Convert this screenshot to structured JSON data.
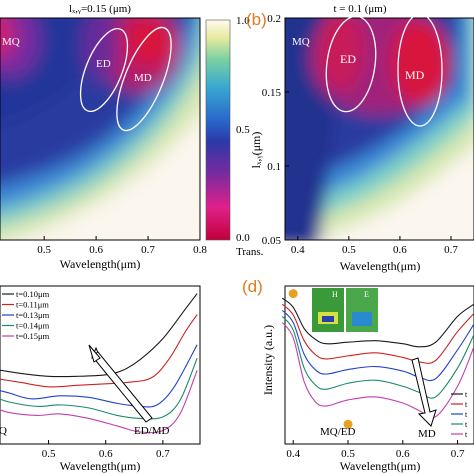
{
  "chart_data": [
    {
      "panel": "a",
      "type": "heatmap",
      "title": "lₓ,ᵧ=0.15 (μm)",
      "xlabel": "Wavelength(μm)",
      "xticks": [
        "0.5",
        "0.6",
        "0.7",
        "0.8"
      ],
      "xlim": [
        0.4,
        0.8
      ],
      "annotations": [
        "MQ",
        "ED",
        "MD"
      ],
      "colorbar": {
        "ticks": [
          "1.0",
          "0.5",
          "0.0"
        ],
        "label": "Trans.",
        "range": [
          0.0,
          1.0
        ]
      }
    },
    {
      "panel": "b",
      "type": "heatmap",
      "label": "(b)",
      "title": "t = 0.1 (μm)",
      "xlabel": "Wavelength(μm)",
      "ylabel": "lₓ,ᵧ(μm)",
      "xticks": [
        "0.4",
        "0.5",
        "0.6",
        "0.7"
      ],
      "yticks": [
        "0.2",
        "0.15",
        "0.1",
        "0.05"
      ],
      "xlim": [
        0.38,
        0.75
      ],
      "ylim": [
        0.05,
        0.2
      ],
      "annotations": [
        "MQ",
        "ED",
        "MD"
      ]
    },
    {
      "panel": "c",
      "type": "line",
      "xlabel": "Wavelength(μm)",
      "xticks": [
        "0.5",
        "0.6",
        "0.7"
      ],
      "xlim": [
        0.4,
        0.76
      ],
      "series": [
        {
          "name": "t=0.10μm",
          "color": "#1a1a1a",
          "x": [
            0.4,
            0.45,
            0.5,
            0.55,
            0.6,
            0.63,
            0.66,
            0.7,
            0.74,
            0.76
          ],
          "y": [
            5.0,
            4.7,
            4.5,
            4.5,
            4.6,
            4.9,
            5.6,
            7.0,
            9.0,
            10.0
          ]
        },
        {
          "name": "t=0.11μm",
          "color": "#cc2222",
          "x": [
            0.4,
            0.45,
            0.5,
            0.55,
            0.6,
            0.64,
            0.68,
            0.71,
            0.74,
            0.76
          ],
          "y": [
            4.4,
            4.1,
            3.8,
            3.9,
            4.0,
            4.1,
            4.4,
            5.6,
            7.5,
            8.6
          ]
        },
        {
          "name": "t=0.13μm",
          "color": "#2244cc",
          "x": [
            0.4,
            0.43,
            0.47,
            0.52,
            0.57,
            0.62,
            0.66,
            0.69,
            0.72,
            0.76
          ],
          "y": [
            3.7,
            3.4,
            3.0,
            3.2,
            3.1,
            2.7,
            2.5,
            2.6,
            3.8,
            6.6
          ]
        },
        {
          "name": "t=0.14μm",
          "color": "#1a8a6a",
          "x": [
            0.4,
            0.43,
            0.48,
            0.52,
            0.57,
            0.62,
            0.66,
            0.7,
            0.73,
            0.76
          ],
          "y": [
            3.2,
            2.8,
            2.5,
            2.6,
            2.4,
            1.9,
            1.7,
            1.8,
            2.9,
            5.7
          ]
        },
        {
          "name": "t=0.15μm",
          "color": "#c040b0",
          "x": [
            0.4,
            0.43,
            0.48,
            0.52,
            0.57,
            0.62,
            0.66,
            0.7,
            0.73,
            0.76
          ],
          "y": [
            2.5,
            2.1,
            1.9,
            2.0,
            1.7,
            1.2,
            0.8,
            0.9,
            2.0,
            4.9
          ]
        }
      ],
      "annotations": [
        "ED/MD",
        "Q"
      ]
    },
    {
      "panel": "d",
      "type": "line",
      "label": "(d)",
      "xlabel": "Wavelength(μm)",
      "ylabel": "Intensity (a.u.)",
      "xticks": [
        "0.4",
        "0.5",
        "0.6",
        "0.7"
      ],
      "xlim": [
        0.38,
        0.73
      ],
      "inset_labels": [
        "H",
        "E"
      ],
      "series": [
        {
          "name": "series-1",
          "color": "#1a1a1a",
          "x": [
            0.38,
            0.4,
            0.42,
            0.44,
            0.46,
            0.5,
            0.55,
            0.6,
            0.63,
            0.66,
            0.7,
            0.73
          ],
          "y": [
            9.6,
            9.0,
            7.6,
            6.9,
            6.6,
            6.7,
            6.8,
            6.6,
            6.4,
            6.7,
            8.4,
            9.2
          ]
        },
        {
          "name": "series-2",
          "color": "#cc2222",
          "x": [
            0.38,
            0.4,
            0.42,
            0.44,
            0.46,
            0.5,
            0.55,
            0.6,
            0.63,
            0.66,
            0.7,
            0.73
          ],
          "y": [
            9.2,
            8.5,
            6.8,
            5.9,
            5.6,
            5.8,
            6.0,
            5.7,
            5.4,
            5.5,
            7.4,
            8.6
          ]
        },
        {
          "name": "series-3",
          "color": "#2244cc",
          "x": [
            0.38,
            0.4,
            0.42,
            0.44,
            0.46,
            0.5,
            0.55,
            0.6,
            0.63,
            0.66,
            0.7,
            0.73
          ],
          "y": [
            8.8,
            8.0,
            5.9,
            4.9,
            4.6,
            4.9,
            5.1,
            4.8,
            4.4,
            4.3,
            6.2,
            7.9
          ]
        },
        {
          "name": "series-4",
          "color": "#1a8a6a",
          "x": [
            0.38,
            0.4,
            0.42,
            0.44,
            0.46,
            0.5,
            0.55,
            0.6,
            0.63,
            0.66,
            0.7,
            0.73
          ],
          "y": [
            8.4,
            7.5,
            5.0,
            3.9,
            3.6,
            4.0,
            4.2,
            3.8,
            3.4,
            3.1,
            5.0,
            7.2
          ]
        },
        {
          "name": "series-5",
          "color": "#c040b0",
          "x": [
            0.38,
            0.4,
            0.42,
            0.44,
            0.46,
            0.5,
            0.55,
            0.6,
            0.63,
            0.66,
            0.7,
            0.73
          ],
          "y": [
            8.0,
            7.0,
            4.1,
            2.8,
            2.5,
            2.9,
            3.1,
            2.7,
            2.2,
            1.8,
            3.8,
            6.4
          ]
        }
      ],
      "markers": [
        {
          "x": 0.4,
          "y": 9.9
        },
        {
          "x": 0.5,
          "y": 1.3
        }
      ],
      "annotations": [
        "MQ/ED",
        "MD"
      ]
    }
  ],
  "panel_c_legend": [
    "t=0.10μm",
    "t=0.11μm",
    "t=0.13μm",
    "t=0.14μm",
    "t=0.15μm"
  ],
  "panel_d_legend_stub": [
    "t",
    "t",
    "t",
    "t",
    "t"
  ],
  "colors": {
    "label_orange": "#e07a20",
    "marker_orange": "#e8a020"
  }
}
